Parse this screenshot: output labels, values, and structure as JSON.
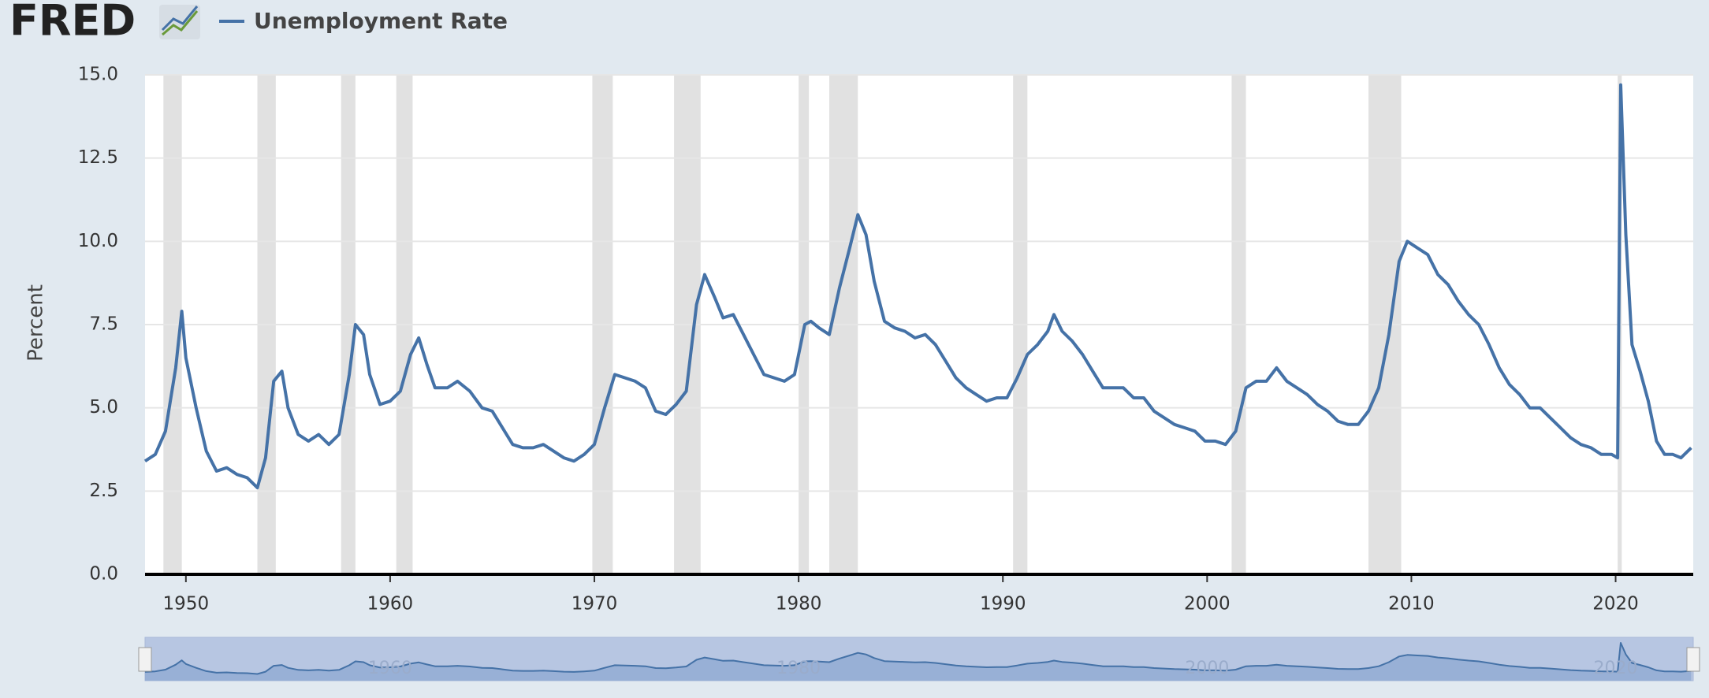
{
  "logo": "FRED",
  "chart_data": {
    "type": "line",
    "y_label": "Percent",
    "series": [
      {
        "name": "Unemployment Rate",
        "color": "#4572a7",
        "x": [
          1948.0,
          1948.5,
          1949.0,
          1949.5,
          1949.8,
          1950.0,
          1950.5,
          1951.0,
          1951.5,
          1952.0,
          1952.5,
          1953.0,
          1953.5,
          1953.9,
          1954.3,
          1954.7,
          1955.0,
          1955.5,
          1956.0,
          1956.5,
          1957.0,
          1957.5,
          1958.0,
          1958.3,
          1958.7,
          1959.0,
          1959.5,
          1960.0,
          1960.5,
          1961.0,
          1961.4,
          1961.8,
          1962.2,
          1962.8,
          1963.3,
          1963.9,
          1964.5,
          1965.0,
          1965.5,
          1966.0,
          1966.5,
          1967.0,
          1967.5,
          1968.0,
          1968.5,
          1969.0,
          1969.5,
          1970.0,
          1970.5,
          1971.0,
          1971.5,
          1972.0,
          1972.5,
          1973.0,
          1973.5,
          1974.0,
          1974.5,
          1975.0,
          1975.4,
          1975.9,
          1976.3,
          1976.8,
          1977.3,
          1977.8,
          1978.3,
          1978.8,
          1979.3,
          1979.8,
          1980.3,
          1980.6,
          1981.0,
          1981.5,
          1982.0,
          1982.5,
          1982.9,
          1983.3,
          1983.7,
          1984.2,
          1984.7,
          1985.2,
          1985.7,
          1986.2,
          1986.7,
          1987.2,
          1987.7,
          1988.2,
          1988.7,
          1989.2,
          1989.7,
          1990.2,
          1990.7,
          1991.2,
          1991.7,
          1992.2,
          1992.5,
          1992.9,
          1993.4,
          1993.9,
          1994.4,
          1994.9,
          1995.4,
          1995.9,
          1996.4,
          1996.9,
          1997.4,
          1997.9,
          1998.4,
          1998.9,
          1999.4,
          1999.9,
          2000.4,
          2000.9,
          2001.4,
          2001.9,
          2002.4,
          2002.9,
          2003.4,
          2003.9,
          2004.4,
          2004.9,
          2005.4,
          2005.9,
          2006.4,
          2006.9,
          2007.4,
          2007.9,
          2008.4,
          2008.9,
          2009.4,
          2009.8,
          2010.3,
          2010.8,
          2011.3,
          2011.8,
          2012.3,
          2012.8,
          2013.3,
          2013.8,
          2014.3,
          2014.8,
          2015.3,
          2015.8,
          2016.3,
          2016.8,
          2017.3,
          2017.8,
          2018.3,
          2018.8,
          2019.3,
          2019.8,
          2020.1,
          2020.25,
          2020.5,
          2020.8,
          2021.2,
          2021.6,
          2022.0,
          2022.4,
          2022.8,
          2023.2,
          2023.7
        ],
        "values": [
          3.4,
          3.6,
          4.3,
          6.2,
          7.9,
          6.5,
          5.0,
          3.7,
          3.1,
          3.2,
          3.0,
          2.9,
          2.6,
          3.5,
          5.8,
          6.1,
          5.0,
          4.2,
          4.0,
          4.2,
          3.9,
          4.2,
          6.0,
          7.5,
          7.2,
          6.0,
          5.1,
          5.2,
          5.5,
          6.6,
          7.1,
          6.3,
          5.6,
          5.6,
          5.8,
          5.5,
          5.0,
          4.9,
          4.4,
          3.9,
          3.8,
          3.8,
          3.9,
          3.7,
          3.5,
          3.4,
          3.6,
          3.9,
          5.0,
          6.0,
          5.9,
          5.8,
          5.6,
          4.9,
          4.8,
          5.1,
          5.5,
          8.1,
          9.0,
          8.3,
          7.7,
          7.8,
          7.2,
          6.6,
          6.0,
          5.9,
          5.8,
          6.0,
          7.5,
          7.6,
          7.4,
          7.2,
          8.6,
          9.8,
          10.8,
          10.2,
          8.8,
          7.6,
          7.4,
          7.3,
          7.1,
          7.2,
          6.9,
          6.4,
          5.9,
          5.6,
          5.4,
          5.2,
          5.3,
          5.3,
          5.9,
          6.6,
          6.9,
          7.3,
          7.8,
          7.3,
          7.0,
          6.6,
          6.1,
          5.6,
          5.6,
          5.6,
          5.3,
          5.3,
          4.9,
          4.7,
          4.5,
          4.4,
          4.3,
          4.0,
          4.0,
          3.9,
          4.3,
          5.6,
          5.8,
          5.8,
          6.2,
          5.8,
          5.6,
          5.4,
          5.1,
          4.9,
          4.6,
          4.5,
          4.5,
          4.9,
          5.6,
          7.2,
          9.4,
          10.0,
          9.8,
          9.6,
          9.0,
          8.7,
          8.2,
          7.8,
          7.5,
          6.9,
          6.2,
          5.7,
          5.4,
          5.0,
          5.0,
          4.7,
          4.4,
          4.1,
          3.9,
          3.8,
          3.6,
          3.6,
          3.5,
          14.7,
          10.2,
          6.9,
          6.1,
          5.2,
          4.0,
          3.6,
          3.6,
          3.5,
          3.8
        ]
      }
    ],
    "recessions": [
      [
        1948.9,
        1949.8
      ],
      [
        1953.5,
        1954.4
      ],
      [
        1957.6,
        1958.3
      ],
      [
        1960.3,
        1961.1
      ],
      [
        1969.9,
        1970.9
      ],
      [
        1973.9,
        1975.2
      ],
      [
        1980.0,
        1980.5
      ],
      [
        1981.5,
        1982.9
      ],
      [
        1990.5,
        1991.2
      ],
      [
        2001.2,
        2001.9
      ],
      [
        2007.9,
        2009.5
      ],
      [
        2020.1,
        2020.3
      ]
    ],
    "xlim": [
      1948.0,
      2023.8
    ],
    "xticks": [
      1950,
      1960,
      1970,
      1980,
      1990,
      2000,
      2010,
      2020
    ],
    "ylim": [
      0,
      15
    ],
    "yticks": [
      {
        "value": 0,
        "label": "0.0"
      },
      {
        "value": 2.5,
        "label": "2.5"
      },
      {
        "value": 5,
        "label": "5.0"
      },
      {
        "value": 7.5,
        "label": "7.5"
      },
      {
        "value": 10,
        "label": "10.0"
      },
      {
        "value": 12.5,
        "label": "12.5"
      },
      {
        "value": 15,
        "label": "15.0"
      }
    ],
    "grid": true,
    "navigator_xticks": [
      1960,
      1980,
      2000,
      2020
    ]
  }
}
